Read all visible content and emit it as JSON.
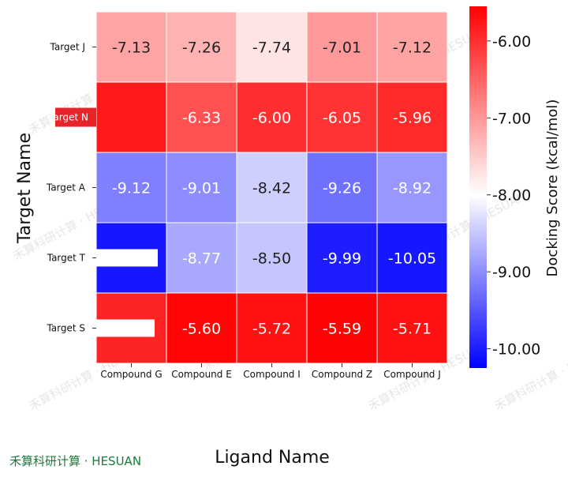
{
  "chart_data": {
    "type": "heatmap",
    "title": "",
    "xlabel": "Ligand Name",
    "ylabel": "Target Name",
    "colorbar_label": "Docking Score (kcal/mol)",
    "x_categories": [
      "Compound G",
      "Compound E",
      "Compound I",
      "Compound Z",
      "Compound J"
    ],
    "y_categories": [
      "Target J",
      "Target N",
      "Target A",
      "Target T",
      "Target S"
    ],
    "values": [
      [
        -7.13,
        -7.26,
        -7.74,
        -7.01,
        -7.12
      ],
      [
        -5.8,
        -6.33,
        -6.0,
        -6.05,
        -5.96
      ],
      [
        -9.12,
        -9.01,
        -8.42,
        -9.26,
        -8.92
      ],
      [
        -10.05,
        -8.77,
        -8.5,
        -9.99,
        -10.05
      ],
      [
        -5.9,
        -5.6,
        -5.72,
        -5.59,
        -5.71
      ]
    ],
    "labels": [
      [
        "-7.13",
        "-7.26",
        "-7.74",
        "-7.01",
        "-7.12"
      ],
      [
        "",
        "-6.33",
        "-6.00",
        "-6.05",
        "-5.96"
      ],
      [
        "-9.12",
        "-9.01",
        "-8.42",
        "-9.26",
        "-8.92"
      ],
      [
        "",
        "-8.77",
        "-8.50",
        "-9.99",
        "-10.05"
      ],
      [
        "",
        "-5.60",
        "-5.72",
        "-5.59",
        "-5.71"
      ]
    ],
    "colorbar_range": [
      -10.25,
      -5.55
    ],
    "colorbar_center": -8.0,
    "colorbar_ticks": [
      -10.0,
      -9.0,
      -8.0,
      -7.0,
      -6.0
    ],
    "colorbar_tick_labels": [
      "-10.00",
      "-9.00",
      "-8.00",
      "-7.00",
      "-6.00"
    ],
    "colormap": {
      "low": "#0000ff",
      "mid": "#ffffff",
      "high": "#ff0000"
    },
    "highlighted_y_label": {
      "text": "Target N",
      "background": "#e8242b",
      "color": "#ffffff"
    },
    "watermark": "禾算科研计算 · HESUAN"
  },
  "brand_text": "禾算科研计算 · HESUAN"
}
